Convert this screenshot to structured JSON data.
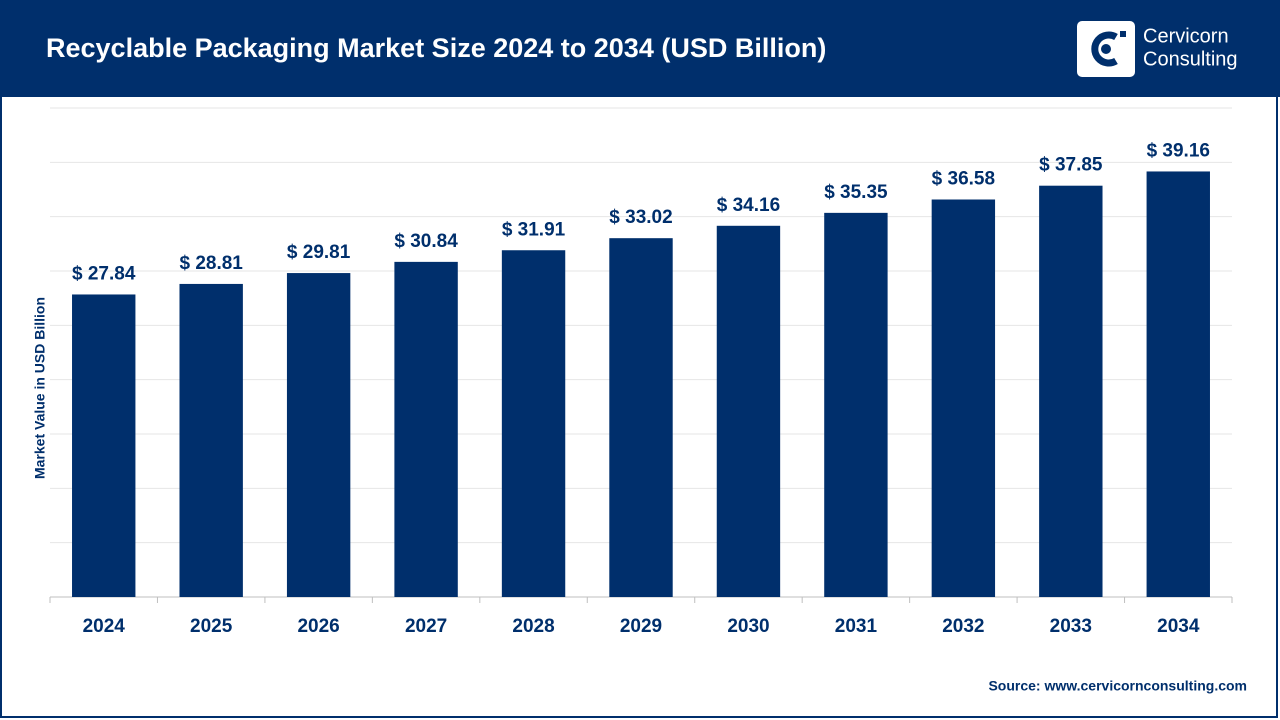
{
  "chart_data": {
    "type": "bar",
    "title": "Recyclable Packaging Market Size 2024 to 2034 (USD Billion)",
    "y_label": "Market Value in USD Billion",
    "categories": [
      "2024",
      "2025",
      "2026",
      "2027",
      "2028",
      "2029",
      "2030",
      "2031",
      "2032",
      "2033",
      "2034"
    ],
    "values": [
      27.84,
      28.81,
      29.81,
      30.84,
      31.91,
      33.02,
      34.16,
      35.35,
      36.58,
      37.85,
      39.16
    ],
    "value_labels": [
      "$ 27.84",
      "$ 28.81",
      "$ 29.81",
      "$ 30.84",
      "$ 31.91",
      "$ 33.02",
      "$ 34.16",
      "$ 35.35",
      "$ 36.58",
      "$ 37.85",
      "$ 39.16"
    ],
    "color": "#002f6c",
    "ylim": [
      0,
      45
    ],
    "yticks": [
      0,
      5,
      10,
      15,
      20,
      25,
      30,
      35,
      40,
      45
    ],
    "grid": true,
    "source": "Source: www.cervicornconsulting.com"
  },
  "logo": {
    "lines": [
      "Cervicorn",
      "Consulting"
    ]
  }
}
